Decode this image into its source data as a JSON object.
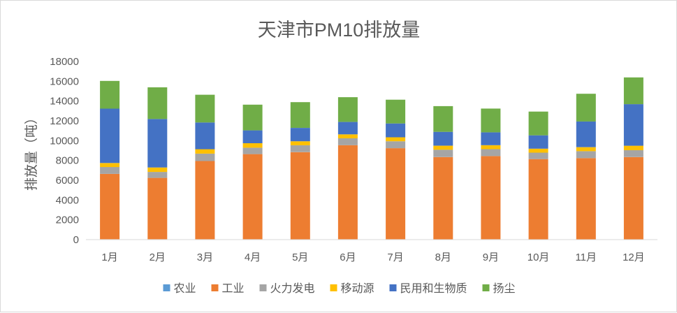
{
  "colors": {
    "农业": "#5b9bd5",
    "工业": "#ed7d31",
    "火力发电": "#a5a5a5",
    "移动源": "#ffc000",
    "民用和生物质": "#4472c4",
    "扬尘": "#70ad47",
    "axis": "#d9d9d9",
    "text": "#595959"
  },
  "chart_data": {
    "type": "bar",
    "stacked": true,
    "title": "天津市PM10排放量",
    "xlabel": "",
    "ylabel": "排放量（吨）",
    "ylim": [
      0,
      18000
    ],
    "yticks": [
      0,
      2000,
      4000,
      6000,
      8000,
      10000,
      12000,
      14000,
      16000,
      18000
    ],
    "grid": false,
    "legend_position": "bottom",
    "categories": [
      "1月",
      "2月",
      "3月",
      "4月",
      "5月",
      "6月",
      "7月",
      "8月",
      "9月",
      "10月",
      "11月",
      "12月"
    ],
    "series": [
      {
        "name": "农业",
        "values": [
          40,
          40,
          40,
          40,
          40,
          40,
          40,
          40,
          40,
          40,
          40,
          40
        ]
      },
      {
        "name": "工业",
        "values": [
          6600,
          6200,
          7900,
          8600,
          8800,
          9500,
          9200,
          8300,
          8400,
          8100,
          8200,
          8300
        ]
      },
      {
        "name": "火力发电",
        "values": [
          700,
          600,
          750,
          650,
          700,
          700,
          700,
          750,
          700,
          650,
          700,
          700
        ]
      },
      {
        "name": "移动源",
        "values": [
          400,
          450,
          450,
          450,
          400,
          400,
          400,
          400,
          400,
          400,
          400,
          450
        ]
      },
      {
        "name": "民用和生物质",
        "values": [
          5500,
          4900,
          2700,
          1300,
          1350,
          1250,
          1400,
          1400,
          1300,
          1350,
          2600,
          4200
        ]
      },
      {
        "name": "扬尘",
        "values": [
          2800,
          3200,
          2800,
          2600,
          2600,
          2500,
          2400,
          2600,
          2400,
          2400,
          2800,
          2700
        ]
      }
    ]
  }
}
